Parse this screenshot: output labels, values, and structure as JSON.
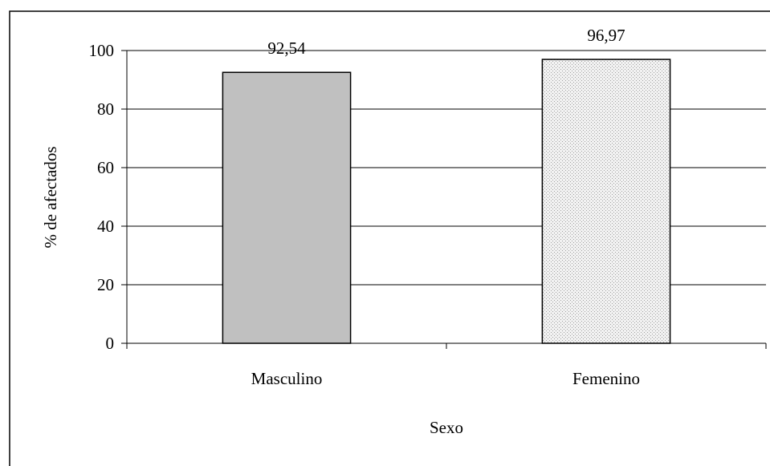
{
  "chart_data": {
    "type": "bar",
    "categories": [
      "Masculino",
      "Femenino"
    ],
    "values": [
      92.54,
      96.97
    ],
    "data_labels": [
      "92,54",
      "96,97"
    ],
    "title": "",
    "xlabel": "Sexo",
    "ylabel": "% de afectados",
    "ylim": [
      0,
      100
    ],
    "yticks": [
      0,
      20,
      40,
      60,
      80,
      100
    ],
    "ytick_labels": [
      "0",
      "20",
      "40",
      "60",
      "80",
      "100"
    ],
    "grid": true,
    "legend": "none",
    "bar_colors": [
      "#c0c0c0",
      "#eeeeee"
    ],
    "bar_patterns": [
      "solid",
      "dotted"
    ]
  }
}
